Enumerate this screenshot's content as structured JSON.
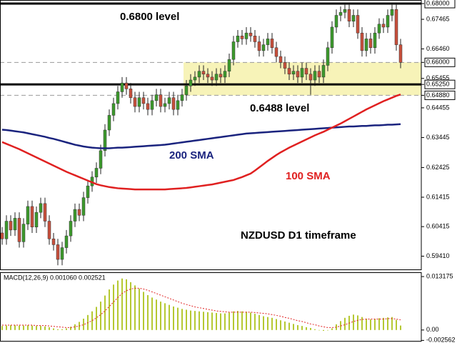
{
  "chart_data": [
    {
      "type": "candlestick",
      "open": [
        0.602,
        0.6,
        0.606,
        0.603,
        0.607,
        0.599,
        0.605,
        0.611,
        0.604,
        0.609,
        0.612,
        0.606,
        0.6,
        0.598,
        0.593,
        0.597,
        0.601,
        0.606,
        0.61,
        0.608,
        0.614,
        0.618,
        0.621,
        0.624,
        0.63,
        0.637,
        0.642,
        0.646,
        0.65,
        0.653,
        0.651,
        0.648,
        0.645,
        0.648,
        0.646,
        0.644,
        0.647,
        0.649,
        0.645,
        0.646,
        0.648,
        0.644,
        0.647,
        0.649,
        0.652,
        0.654,
        0.655,
        0.657,
        0.656,
        0.655,
        0.654,
        0.656,
        0.655,
        0.657,
        0.661,
        0.667,
        0.669,
        0.668,
        0.67,
        0.669,
        0.667,
        0.664,
        0.666,
        0.668,
        0.665,
        0.662,
        0.66,
        0.658,
        0.656,
        0.657,
        0.655,
        0.658,
        0.656,
        0.654,
        0.657,
        0.655,
        0.659,
        0.665,
        0.672,
        0.676,
        0.677,
        0.678,
        0.674,
        0.676,
        0.67,
        0.664,
        0.668,
        0.665,
        0.67,
        0.673,
        0.672,
        0.676,
        0.678,
        0.666
      ],
      "high": [
        0.604,
        0.608,
        0.608,
        0.609,
        0.609,
        0.607,
        0.613,
        0.613,
        0.611,
        0.614,
        0.614,
        0.608,
        0.602,
        0.6,
        0.599,
        0.603,
        0.608,
        0.612,
        0.612,
        0.616,
        0.62,
        0.623,
        0.626,
        0.632,
        0.639,
        0.644,
        0.648,
        0.652,
        0.655,
        0.655,
        0.653,
        0.65,
        0.65,
        0.65,
        0.648,
        0.649,
        0.651,
        0.651,
        0.648,
        0.65,
        0.65,
        0.649,
        0.651,
        0.654,
        0.656,
        0.657,
        0.659,
        0.659,
        0.658,
        0.657,
        0.658,
        0.658,
        0.659,
        0.663,
        0.669,
        0.671,
        0.671,
        0.672,
        0.672,
        0.671,
        0.669,
        0.668,
        0.67,
        0.67,
        0.667,
        0.664,
        0.662,
        0.66,
        0.659,
        0.659,
        0.66,
        0.66,
        0.658,
        0.659,
        0.659,
        0.661,
        0.667,
        0.674,
        0.678,
        0.679,
        0.68,
        0.68,
        0.678,
        0.678,
        0.672,
        0.67,
        0.67,
        0.672,
        0.675,
        0.675,
        0.678,
        0.68,
        0.68,
        0.668
      ],
      "low": [
        0.598,
        0.598,
        0.601,
        0.601,
        0.597,
        0.597,
        0.603,
        0.602,
        0.602,
        0.607,
        0.604,
        0.598,
        0.596,
        0.591,
        0.591,
        0.595,
        0.599,
        0.604,
        0.606,
        0.606,
        0.612,
        0.616,
        0.619,
        0.622,
        0.628,
        0.635,
        0.64,
        0.644,
        0.648,
        0.649,
        0.646,
        0.643,
        0.643,
        0.644,
        0.642,
        0.642,
        0.645,
        0.643,
        0.643,
        0.644,
        0.642,
        0.642,
        0.645,
        0.647,
        0.65,
        0.652,
        0.653,
        0.654,
        0.653,
        0.652,
        0.652,
        0.653,
        0.653,
        0.655,
        0.659,
        0.665,
        0.666,
        0.666,
        0.667,
        0.665,
        0.662,
        0.662,
        0.664,
        0.663,
        0.66,
        0.658,
        0.656,
        0.654,
        0.654,
        0.653,
        0.653,
        0.654,
        0.649,
        0.652,
        0.653,
        0.653,
        0.657,
        0.663,
        0.67,
        0.674,
        0.675,
        0.672,
        0.672,
        0.668,
        0.662,
        0.662,
        0.663,
        0.663,
        0.668,
        0.67,
        0.67,
        0.674,
        0.664,
        0.658
      ],
      "close": [
        0.6,
        0.606,
        0.603,
        0.607,
        0.599,
        0.605,
        0.611,
        0.604,
        0.609,
        0.612,
        0.606,
        0.6,
        0.598,
        0.593,
        0.597,
        0.601,
        0.606,
        0.61,
        0.608,
        0.614,
        0.618,
        0.621,
        0.624,
        0.63,
        0.637,
        0.642,
        0.646,
        0.65,
        0.653,
        0.651,
        0.648,
        0.645,
        0.648,
        0.646,
        0.644,
        0.647,
        0.649,
        0.645,
        0.646,
        0.648,
        0.644,
        0.647,
        0.649,
        0.652,
        0.654,
        0.655,
        0.657,
        0.656,
        0.655,
        0.654,
        0.656,
        0.655,
        0.657,
        0.661,
        0.667,
        0.669,
        0.668,
        0.67,
        0.669,
        0.667,
        0.664,
        0.666,
        0.668,
        0.665,
        0.662,
        0.66,
        0.658,
        0.656,
        0.657,
        0.655,
        0.658,
        0.656,
        0.654,
        0.657,
        0.655,
        0.659,
        0.665,
        0.672,
        0.676,
        0.677,
        0.678,
        0.674,
        0.676,
        0.67,
        0.664,
        0.668,
        0.665,
        0.67,
        0.673,
        0.672,
        0.676,
        0.678,
        0.666,
        0.66
      ],
      "up_color": "#3c9a2c",
      "down_color": "#c8503c",
      "series": [
        {
          "name": "200 SMA",
          "color": "#1a237e",
          "values": [
            0.6371,
            0.637,
            0.6368,
            0.6366,
            0.6364,
            0.6362,
            0.6359,
            0.6356,
            0.6353,
            0.635,
            0.6347,
            0.6343,
            0.634,
            0.6336,
            0.6332,
            0.6328,
            0.6324,
            0.632,
            0.6317,
            0.6314,
            0.6312,
            0.631,
            0.6309,
            0.6308,
            0.6308,
            0.6308,
            0.6309,
            0.631,
            0.631,
            0.6311,
            0.6312,
            0.6313,
            0.6314,
            0.6315,
            0.6316,
            0.6317,
            0.6318,
            0.6319,
            0.632,
            0.6322,
            0.6324,
            0.6326,
            0.6328,
            0.633,
            0.6332,
            0.6334,
            0.6336,
            0.6338,
            0.634,
            0.6342,
            0.6344,
            0.6346,
            0.6348,
            0.635,
            0.6352,
            0.6354,
            0.6356,
            0.6358,
            0.6359,
            0.636,
            0.6361,
            0.6362,
            0.6363,
            0.6364,
            0.6365,
            0.6366,
            0.6367,
            0.6368,
            0.6369,
            0.637,
            0.6371,
            0.6372,
            0.6373,
            0.6374,
            0.6375,
            0.6376,
            0.6377,
            0.6378,
            0.6379,
            0.638,
            0.6381,
            0.6382,
            0.6382,
            0.6383,
            0.6384,
            0.6384,
            0.6385,
            0.6386,
            0.6386,
            0.6387,
            0.6388,
            0.6388,
            0.6389,
            0.639
          ]
        },
        {
          "name": "100 SMA",
          "color": "#e02020",
          "values": [
            0.6329,
            0.6323,
            0.6317,
            0.6311,
            0.6305,
            0.6298,
            0.6291,
            0.6284,
            0.6277,
            0.627,
            0.6263,
            0.6256,
            0.6249,
            0.6242,
            0.6235,
            0.6228,
            0.6222,
            0.6216,
            0.621,
            0.6204,
            0.6198,
            0.6192,
            0.6186,
            0.6182,
            0.6179,
            0.6176,
            0.6174,
            0.6172,
            0.6171,
            0.617,
            0.6169,
            0.6168,
            0.6168,
            0.6168,
            0.6168,
            0.6168,
            0.6168,
            0.6168,
            0.6168,
            0.6169,
            0.617,
            0.6171,
            0.6172,
            0.6173,
            0.6175,
            0.6177,
            0.6179,
            0.6181,
            0.6183,
            0.6185,
            0.6188,
            0.6191,
            0.6194,
            0.6197,
            0.62,
            0.6205,
            0.621,
            0.6216,
            0.6222,
            0.6232,
            0.6243,
            0.6254,
            0.6265,
            0.6275,
            0.6285,
            0.6294,
            0.6302,
            0.631,
            0.6317,
            0.6324,
            0.6331,
            0.6338,
            0.6345,
            0.6352,
            0.6358,
            0.6364,
            0.6371,
            0.6378,
            0.6385,
            0.6392,
            0.64,
            0.6408,
            0.6416,
            0.6424,
            0.6432,
            0.644,
            0.6447,
            0.6454,
            0.6461,
            0.6468,
            0.6474,
            0.648,
            0.6486,
            0.6491
          ]
        }
      ],
      "levels": [
        {
          "value": 0.68,
          "style": "solid",
          "color": "#000000"
        },
        {
          "value": 0.6525,
          "style": "solid",
          "color": "#000000"
        },
        {
          "value": 0.66,
          "style": "dashed",
          "color": "#999999"
        },
        {
          "value": 0.6488,
          "style": "dashed",
          "color": "#999999"
        }
      ],
      "zone": {
        "low": 0.6488,
        "high": 0.66,
        "color": "#f7f3b8"
      },
      "annotations": [
        "0.6800 level",
        "0.6488 level",
        "NZDUSD D1 timeframe"
      ],
      "ylim": [
        0.58936,
        0.68122
      ],
      "yticks": [
        {
          "value": 0.68,
          "label": "0.68000"
        },
        {
          "value": 0.67465,
          "label": "0.67465"
        },
        {
          "value": 0.6646,
          "label": "0.66460"
        },
        {
          "value": 0.66,
          "label": "0.66000"
        },
        {
          "value": 0.65455,
          "label": "0.65455"
        },
        {
          "value": 0.6525,
          "label": "0.65250"
        },
        {
          "value": 0.6488,
          "label": "0.64880"
        },
        {
          "value": 0.64455,
          "label": "0.64455"
        },
        {
          "value": 0.63445,
          "label": "0.63445"
        },
        {
          "value": 0.62425,
          "label": "0.62425"
        },
        {
          "value": 0.61415,
          "label": "0.61415"
        },
        {
          "value": 0.60415,
          "label": "0.60415"
        },
        {
          "value": 0.5941,
          "label": "0.59410"
        }
      ]
    },
    {
      "type": "macd",
      "title": "MACD(12,26,9) 0.001060 0.002521",
      "histogram_color": "#b5c832",
      "signal_color": "#e02020",
      "values": [
        0.001,
        0.0011,
        0.0012,
        0.0012,
        0.0011,
        0.0011,
        0.0012,
        0.0011,
        0.001,
        0.001,
        0.0009,
        0.0007,
        0.0004,
        0.0002,
        0.0002,
        0.0004,
        0.0008,
        0.0014,
        0.002,
        0.0028,
        0.0037,
        0.0046,
        0.0057,
        0.007,
        0.0085,
        0.01,
        0.0112,
        0.0122,
        0.0127,
        0.0125,
        0.0118,
        0.011,
        0.0102,
        0.0094,
        0.0086,
        0.008,
        0.0075,
        0.007,
        0.0066,
        0.0062,
        0.0058,
        0.0055,
        0.0052,
        0.005,
        0.0048,
        0.0047,
        0.0046,
        0.0045,
        0.0044,
        0.0043,
        0.0042,
        0.0041,
        0.0041,
        0.0043,
        0.0046,
        0.0047,
        0.0046,
        0.0045,
        0.0043,
        0.004,
        0.0037,
        0.0034,
        0.0032,
        0.003,
        0.0027,
        0.0024,
        0.0021,
        0.0018,
        0.0015,
        0.0012,
        0.001,
        0.0007,
        0.0005,
        0.0002,
        0.0,
        -0.0002,
        -0.0001,
        0.0004,
        0.0014,
        0.0022,
        0.003,
        0.0035,
        0.0038,
        0.0036,
        0.0032,
        0.0028,
        0.0026,
        0.0027,
        0.0029,
        0.003,
        0.0031,
        0.0032,
        0.0025,
        0.0011
      ],
      "signal": [
        0.0012,
        0.0012,
        0.0012,
        0.0012,
        0.0012,
        0.0012,
        0.0012,
        0.0012,
        0.0011,
        0.0011,
        0.0011,
        0.001,
        0.0009,
        0.0008,
        0.0007,
        0.0006,
        0.0006,
        0.0008,
        0.001,
        0.0013,
        0.0018,
        0.0023,
        0.003,
        0.0038,
        0.0047,
        0.0058,
        0.0069,
        0.008,
        0.009,
        0.0097,
        0.0101,
        0.0103,
        0.0103,
        0.0101,
        0.0098,
        0.0094,
        0.009,
        0.0086,
        0.0082,
        0.0078,
        0.0074,
        0.007,
        0.0066,
        0.0063,
        0.006,
        0.0057,
        0.0055,
        0.0053,
        0.0051,
        0.0049,
        0.0047,
        0.0046,
        0.0045,
        0.0044,
        0.0044,
        0.0044,
        0.0044,
        0.0044,
        0.0044,
        0.0043,
        0.0042,
        0.0041,
        0.004,
        0.0038,
        0.0036,
        0.0034,
        0.0031,
        0.0029,
        0.0026,
        0.0023,
        0.0021,
        0.0018,
        0.0015,
        0.0013,
        0.001,
        0.0008,
        0.0006,
        0.0006,
        0.0007,
        0.001,
        0.0013,
        0.0017,
        0.0021,
        0.0024,
        0.0026,
        0.0027,
        0.0027,
        0.0027,
        0.0027,
        0.0027,
        0.0028,
        0.0028,
        0.0027,
        0.0025
      ],
      "ylim": [
        -0.00285,
        0.01424
      ],
      "yticks": [
        0.013175,
        {
          "value": 0,
          "label": "0.00"
        },
        -0.002562
      ]
    }
  ]
}
